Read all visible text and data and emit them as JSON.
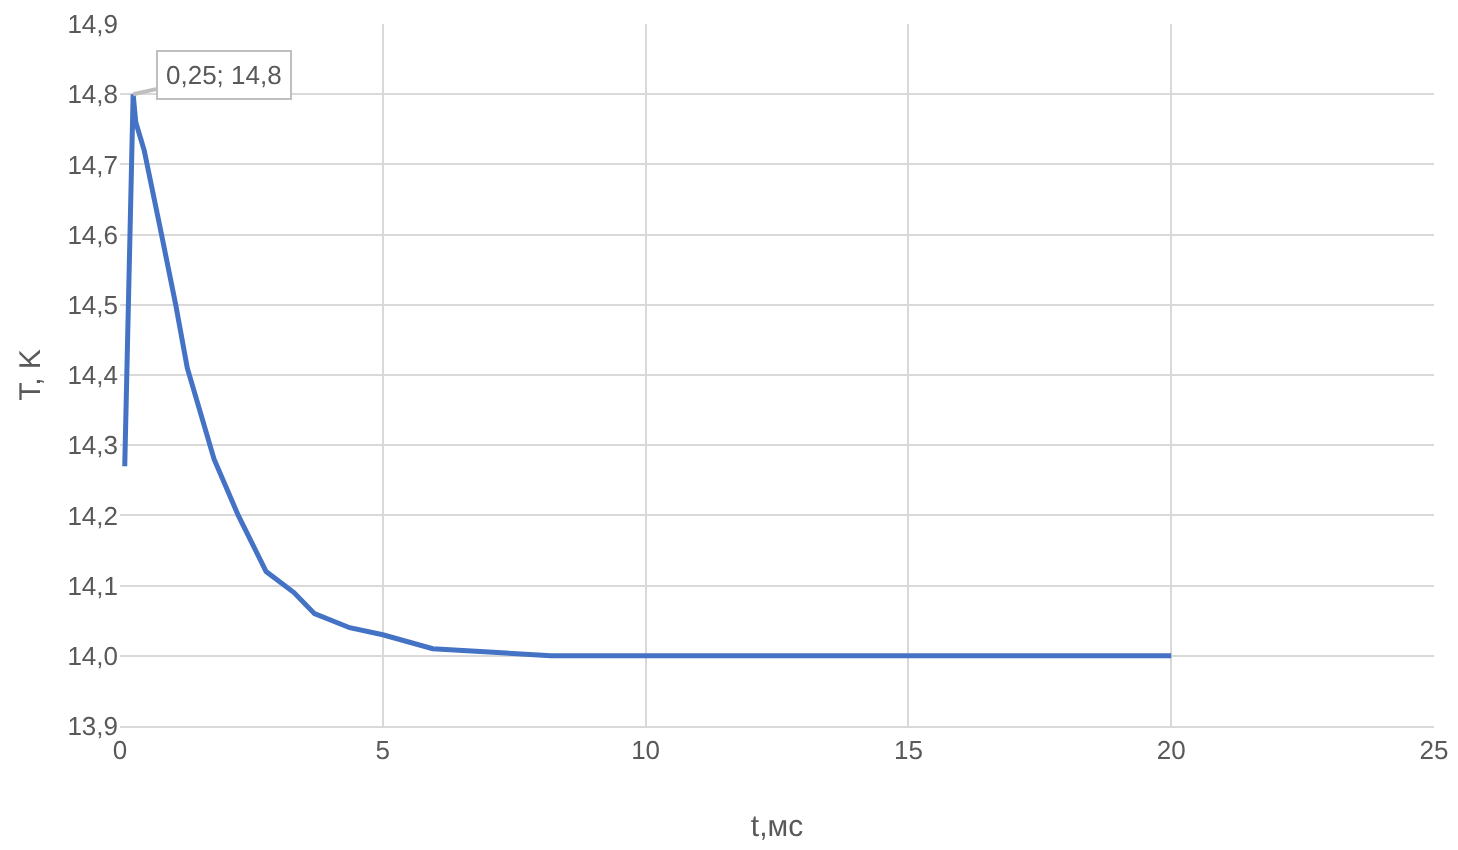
{
  "chart_data": {
    "type": "line",
    "xlabel": "t,мс",
    "ylabel": "T, K",
    "x": [
      0.09,
      0.25,
      0.3,
      0.46,
      0.79,
      1.06,
      1.28,
      1.79,
      2.25,
      2.78,
      3.31,
      3.7,
      4.37,
      5,
      5.95,
      7.1,
      8.2,
      10,
      15,
      20
    ],
    "series": [
      {
        "color": "#4472c4",
        "values": [
          14.27,
          14.8,
          14.76,
          14.72,
          14.6,
          14.5,
          14.41,
          14.28,
          14.2,
          14.12,
          14.09,
          14.06,
          14.04,
          14.03,
          14.01,
          14.005,
          14.0,
          14.0,
          14.0,
          14.0
        ]
      }
    ],
    "xlim": [
      0,
      25
    ],
    "xticks": [
      0,
      5,
      10,
      15,
      20,
      25
    ],
    "ylim": [
      13.9,
      14.9
    ],
    "yticks": [
      {
        "value": 13.9,
        "label": "13,9"
      },
      {
        "value": 14.0,
        "label": "14,0"
      },
      {
        "value": 14.1,
        "label": "14,1"
      },
      {
        "value": 14.2,
        "label": "14,2"
      },
      {
        "value": 14.3,
        "label": "14,3"
      },
      {
        "value": 14.4,
        "label": "14,4"
      },
      {
        "value": 14.5,
        "label": "14,5"
      },
      {
        "value": 14.6,
        "label": "14,6"
      },
      {
        "value": 14.7,
        "label": "14,7"
      },
      {
        "value": 14.8,
        "label": "14,8"
      },
      {
        "value": 14.9,
        "label": "14,9"
      }
    ],
    "grid": true,
    "marker": "none",
    "line_style": "solid",
    "annotations": [
      {
        "text": "0,25; 14,8",
        "x": 0.25,
        "y": 14.8
      }
    ]
  }
}
